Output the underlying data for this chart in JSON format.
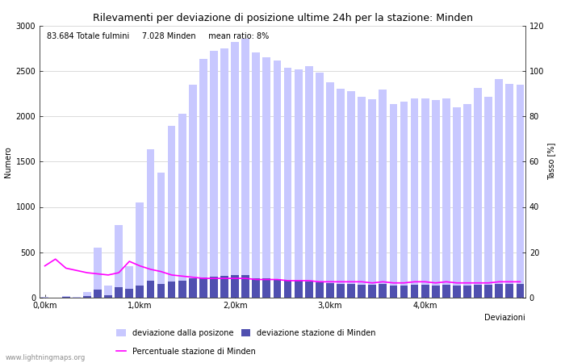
{
  "title": "Rilevamenti per deviazione di posizione ultime 24h per la stazione: Minden",
  "xlabel": "Deviazioni",
  "ylabel_left": "Numero",
  "ylabel_right": "Tasso [%]",
  "annotation": "83.684 Totale fulmini     7.028 Minden     mean ratio: 8%",
  "xlim_min": -0.5,
  "xlim_max": 45.5,
  "ylim_left": [
    0,
    3000
  ],
  "ylim_right": [
    0,
    120
  ],
  "xtick_positions": [
    0,
    9,
    18,
    27,
    36,
    45
  ],
  "xtick_labels": [
    "0,0km",
    "1,0km",
    "2,0km",
    "3,0km",
    "4,0km",
    ""
  ],
  "ytick_left": [
    0,
    500,
    1000,
    1500,
    2000,
    2500,
    3000
  ],
  "ytick_right": [
    0,
    20,
    40,
    60,
    80,
    100,
    120
  ],
  "bar_total": [
    5,
    2,
    15,
    5,
    60,
    550,
    130,
    800,
    350,
    1050,
    1640,
    1380,
    1890,
    2025,
    2350,
    2630,
    2720,
    2750,
    2820,
    2850,
    2700,
    2650,
    2610,
    2530,
    2520,
    2550,
    2480,
    2370,
    2300,
    2280,
    2210,
    2190,
    2290,
    2130,
    2160,
    2200,
    2200,
    2180,
    2200,
    2100,
    2130,
    2310,
    2210,
    2410,
    2360,
    2350
  ],
  "bar_minden": [
    2,
    1,
    8,
    2,
    20,
    90,
    30,
    120,
    100,
    130,
    185,
    155,
    175,
    190,
    210,
    220,
    230,
    240,
    250,
    250,
    210,
    210,
    205,
    185,
    185,
    180,
    170,
    160,
    155,
    150,
    145,
    140,
    150,
    130,
    135,
    145,
    145,
    135,
    140,
    130,
    130,
    145,
    140,
    155,
    155,
    150
  ],
  "ratio": [
    14,
    17,
    13,
    12,
    11,
    10.5,
    10,
    11,
    16,
    14,
    12.5,
    11.5,
    10,
    9.5,
    9.0,
    8.5,
    8.5,
    8.5,
    8.5,
    8.5,
    8.0,
    8.0,
    8.0,
    7.5,
    7.5,
    7.5,
    7.0,
    7.0,
    7.0,
    7.0,
    7.0,
    6.5,
    7.0,
    6.5,
    6.5,
    7.0,
    7.0,
    6.5,
    7.0,
    6.5,
    6.5,
    6.5,
    6.5,
    7.0,
    7.0,
    7.0
  ],
  "color_total": "#c8c8ff",
  "color_minden": "#5050b0",
  "color_ratio": "#ff00ff",
  "background_color": "#ffffff",
  "grid_color": "#cccccc",
  "watermark": "www.lightningmaps.org",
  "title_fontsize": 9,
  "label_fontsize": 7,
  "tick_fontsize": 7,
  "annotation_fontsize": 7,
  "watermark_fontsize": 6,
  "legend_fontsize": 7
}
